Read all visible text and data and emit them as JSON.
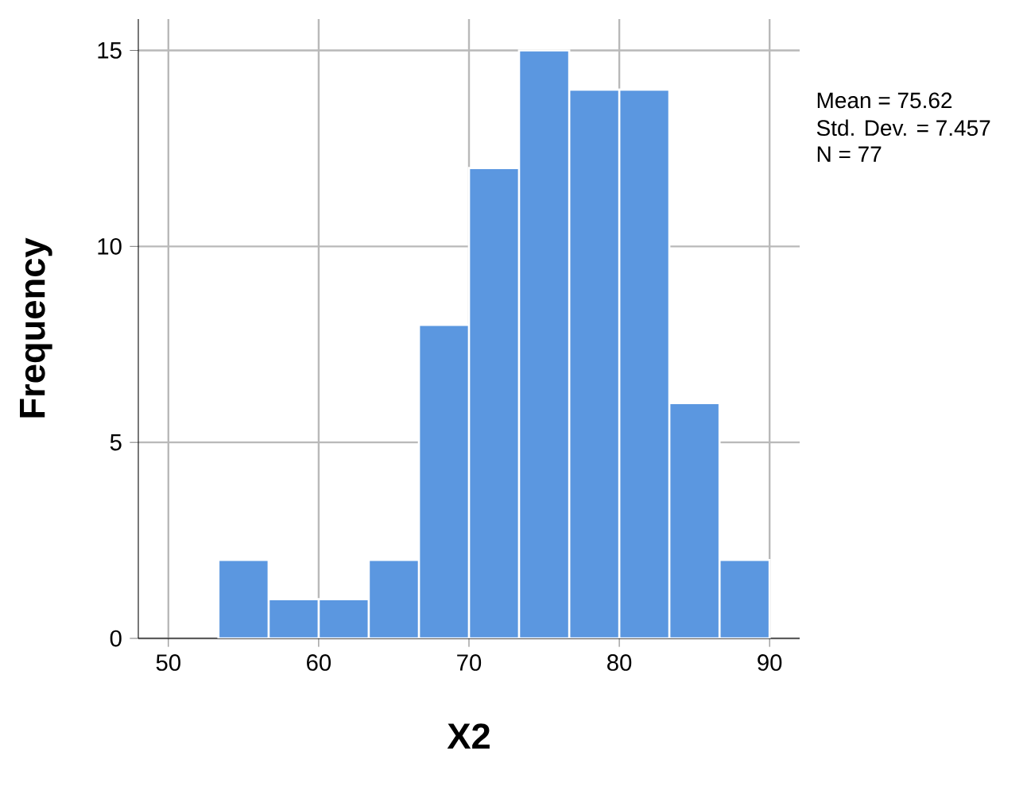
{
  "chart_data": {
    "type": "histogram",
    "xlabel": "X2",
    "ylabel": "Frequency",
    "bins": [
      53.33,
      56.67,
      60,
      63.33,
      66.67,
      70,
      73.33,
      76.67,
      80,
      83.33,
      86.67,
      90
    ],
    "values": [
      2,
      1,
      1,
      2,
      8,
      12,
      15,
      14,
      14,
      6,
      2
    ],
    "color": "#5b97e0",
    "xlim": [
      48,
      92
    ],
    "ylim": [
      0,
      15.8
    ],
    "xticks": [
      50,
      60,
      70,
      80,
      90
    ],
    "yticks": [
      0,
      5,
      10,
      15
    ],
    "grid": true,
    "annotations": [
      "Mean = 75.62",
      "Std. Dev. = 7.457",
      "N = 77"
    ]
  }
}
